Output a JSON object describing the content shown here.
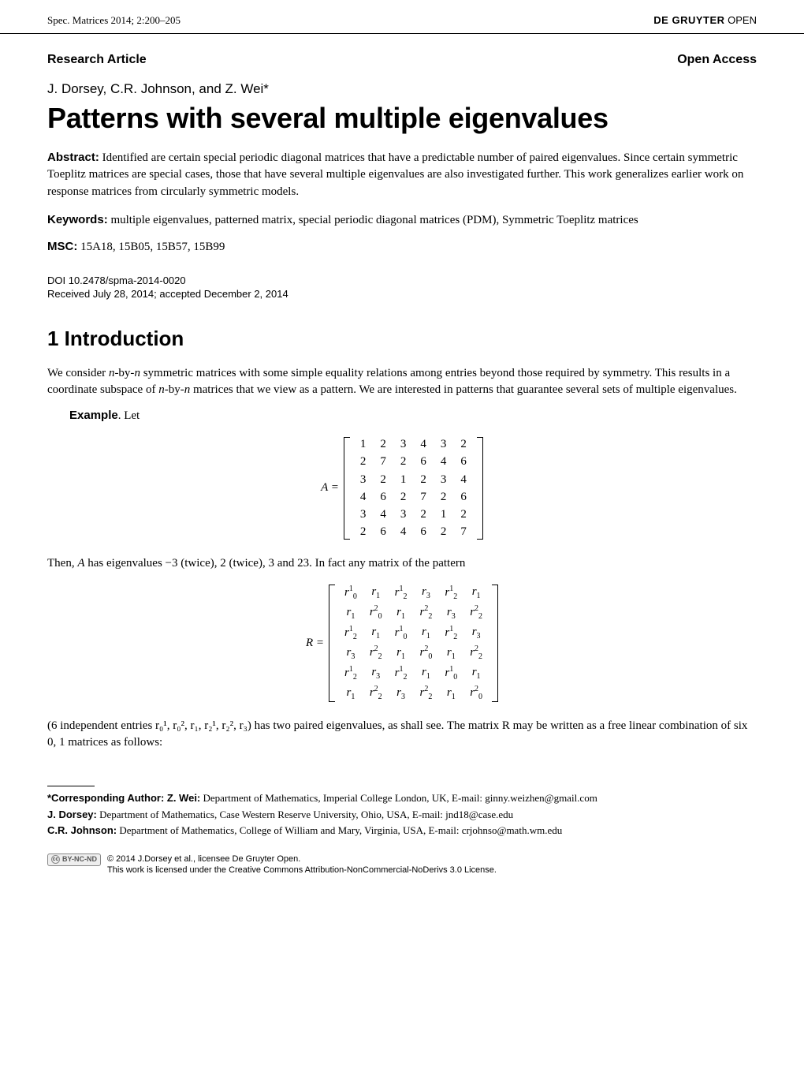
{
  "header": {
    "journal_ref": "Spec. Matrices 2014; 2:200–205",
    "publisher": "DE GRUYTER",
    "publisher_suffix": " OPEN"
  },
  "article": {
    "type_label": "Research Article",
    "access_label": "Open Access",
    "authors": "J. Dorsey, C.R. Johnson, and Z. Wei*",
    "title": "Patterns with several multiple eigenvalues",
    "abstract_label": "Abstract:",
    "abstract_text": " Identified are certain special periodic diagonal matrices that have a predictable number of paired eigenvalues. Since certain symmetric Toeplitz matrices are special cases, those that have several multiple eigenvalues are also investigated further. This work generalizes earlier work on response matrices from circularly symmetric models.",
    "keywords_label": "Keywords:",
    "keywords_text": " multiple eigenvalues, patterned matrix, special periodic diagonal matrices (PDM), Symmetric Toeplitz matrices",
    "msc_label": "MSC:",
    "msc_text": " 15A18, 15B05, 15B57, 15B99",
    "doi": "DOI 10.2478/spma-2014-0020",
    "received": "Received July 28, 2014; accepted December 2, 2014"
  },
  "section1": {
    "heading": "1  Introduction",
    "para1_a": "We consider ",
    "para1_b": "n",
    "para1_c": "-by-",
    "para1_d": "n",
    "para1_e": " symmetric matrices with some simple equality relations among entries beyond those required by symmetry. This results in a coordinate subspace of ",
    "para1_f": "n",
    "para1_g": "-by-",
    "para1_h": "n",
    "para1_i": " matrices that we view as a pattern. We are interested in patterns that guarantee several sets of multiple eigenvalues.",
    "example_label": "Example",
    "example_tail": ". Let",
    "matrixA_lhs": "A = ",
    "matrixA": {
      "rows": [
        [
          "1",
          "2",
          "3",
          "4",
          "3",
          "2"
        ],
        [
          "2",
          "7",
          "2",
          "6",
          "4",
          "6"
        ],
        [
          "3",
          "2",
          "1",
          "2",
          "3",
          "4"
        ],
        [
          "4",
          "6",
          "2",
          "7",
          "2",
          "6"
        ],
        [
          "3",
          "4",
          "3",
          "2",
          "1",
          "2"
        ],
        [
          "2",
          "6",
          "4",
          "6",
          "2",
          "7"
        ]
      ]
    },
    "para2_a": "Then, ",
    "para2_b": "A",
    "para2_c": " has eigenvalues −3 (twice), 2 (twice), 3 and 23. In fact any matrix of the pattern",
    "matrixR_lhs": "R = ",
    "matrixR": {
      "rows": [
        [
          [
            "r",
            "0",
            "1"
          ],
          [
            "r",
            "1",
            ""
          ],
          [
            "r",
            "2",
            "1"
          ],
          [
            "r",
            "3",
            ""
          ],
          [
            "r",
            "2",
            "1"
          ],
          [
            "r",
            "1",
            ""
          ]
        ],
        [
          [
            "r",
            "1",
            ""
          ],
          [
            "r",
            "0",
            "2"
          ],
          [
            "r",
            "1",
            ""
          ],
          [
            "r",
            "2",
            "2"
          ],
          [
            "r",
            "3",
            ""
          ],
          [
            "r",
            "2",
            "2"
          ]
        ],
        [
          [
            "r",
            "2",
            "1"
          ],
          [
            "r",
            "1",
            ""
          ],
          [
            "r",
            "0",
            "1"
          ],
          [
            "r",
            "1",
            ""
          ],
          [
            "r",
            "2",
            "1"
          ],
          [
            "r",
            "3",
            ""
          ]
        ],
        [
          [
            "r",
            "3",
            ""
          ],
          [
            "r",
            "2",
            "2"
          ],
          [
            "r",
            "1",
            ""
          ],
          [
            "r",
            "0",
            "2"
          ],
          [
            "r",
            "1",
            ""
          ],
          [
            "r",
            "2",
            "2"
          ]
        ],
        [
          [
            "r",
            "2",
            "1"
          ],
          [
            "r",
            "3",
            ""
          ],
          [
            "r",
            "2",
            "1"
          ],
          [
            "r",
            "1",
            ""
          ],
          [
            "r",
            "0",
            "1"
          ],
          [
            "r",
            "1",
            ""
          ]
        ],
        [
          [
            "r",
            "1",
            ""
          ],
          [
            "r",
            "2",
            "2"
          ],
          [
            "r",
            "3",
            ""
          ],
          [
            "r",
            "2",
            "2"
          ],
          [
            "r",
            "1",
            ""
          ],
          [
            "r",
            "0",
            "2"
          ]
        ]
      ]
    },
    "para3": "(6 independent entries r₀¹, r₀², r₁, r₂¹, r₂², r₃) has two paired eigenvalues, as shall see. The matrix R may be written as a free linear combination of six 0, 1 matrices as follows:"
  },
  "footnotes": {
    "corr_label": "*Corresponding Author: Z. Wei:",
    "corr_text": " Department of Mathematics, Imperial College London, UK, E-mail: ginny.weizhen@gmail.com",
    "dorsey_label": "J. Dorsey:",
    "dorsey_text": " Department of Mathematics, Case Western Reserve University, Ohio, USA, E-mail: jnd18@case.edu",
    "johnson_label": "C.R. Johnson:",
    "johnson_text": " Department of Mathematics, College of William and Mary, Virginia, USA, E-mail: crjohnso@math.wm.edu"
  },
  "license": {
    "cc_text": "BY-NC-ND",
    "line1": " © 2014 J.Dorsey et al., licensee De Gruyter Open.",
    "line2": "This work is licensed under the Creative Commons Attribution-NonCommercial-NoDerivs 3.0 License."
  }
}
